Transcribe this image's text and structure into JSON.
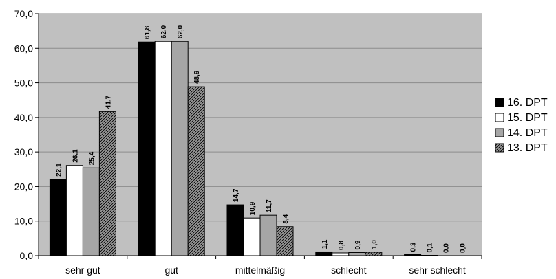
{
  "chart_data": {
    "type": "bar",
    "categories": [
      "sehr gut",
      "gut",
      "mittelmäßig",
      "schlecht",
      "sehr schlecht"
    ],
    "series": [
      {
        "name": "16. DPT",
        "values": [
          22.1,
          61.8,
          14.7,
          1.1,
          0.3
        ],
        "labels": [
          "22,1",
          "61,8",
          "14,7",
          "1,1",
          "0,3"
        ],
        "fill": "#000000",
        "pattern": "solid"
      },
      {
        "name": "15. DPT",
        "values": [
          26.1,
          62.0,
          10.9,
          0.8,
          0.1
        ],
        "labels": [
          "26,1",
          "62,0",
          "10,9",
          "0,8",
          "0,1"
        ],
        "fill": "#ffffff",
        "pattern": "solid"
      },
      {
        "name": "14. DPT",
        "values": [
          25.4,
          62.0,
          11.7,
          0.9,
          0.0
        ],
        "labels": [
          "25,4",
          "62,0",
          "11,7",
          "0,9",
          "0,0"
        ],
        "fill": "#a6a6a6",
        "pattern": "solid"
      },
      {
        "name": "13. DPT",
        "values": [
          41.7,
          48.9,
          8.4,
          1.0,
          0.0
        ],
        "labels": [
          "41,7",
          "48,9",
          "8,4",
          "1,0",
          "0,0"
        ],
        "fill": "#808080",
        "pattern": "hatched"
      }
    ],
    "ylim": [
      0,
      70
    ],
    "yticks": [
      "0,0",
      "10,0",
      "20,0",
      "30,0",
      "40,0",
      "50,0",
      "60,0",
      "70,0"
    ],
    "grid": true,
    "legend": "right",
    "plot_background": "#c0c0c0",
    "xlabel": "",
    "ylabel": "",
    "title": ""
  }
}
